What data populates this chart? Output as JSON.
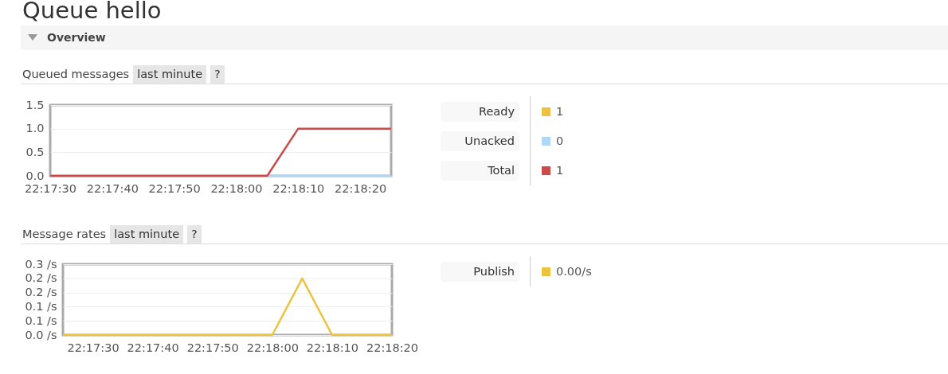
{
  "chart_data": [
    {
      "type": "other",
      "title": "Queue hello",
      "subtitle": "Overview"
    },
    {
      "type": "line",
      "title": "Queued messages",
      "annotations": [
        "last minute",
        "?",
        "1",
        "0",
        "1"
      ],
      "x": [
        22.291667,
        22.301389,
        22.302778,
        22.306944
      ],
      "series": [
        {
          "name": "Ready",
          "color": "#edc240",
          "values": [
            null,
            null,
            null,
            null
          ]
        },
        {
          "name": "Unacked",
          "color": "#afd8f8",
          "values": [
            null,
            0,
            0,
            0
          ]
        },
        {
          "name": "Total",
          "color": "#cb4b4b",
          "values": [
            0,
            0,
            1,
            1
          ]
        }
      ],
      "xlim": [
        22.291667,
        22.306944
      ],
      "xticks": [
        {
          "value": 22.291667,
          "label": "22:17:30"
        },
        {
          "value": 22.294444,
          "label": "22:17:40"
        },
        {
          "value": 22.297222,
          "label": "22:17:50"
        },
        {
          "value": 22.3,
          "label": "22:18:00"
        },
        {
          "value": 22.302778,
          "label": "22:18:10"
        },
        {
          "value": 22.305556,
          "label": "22:18:20"
        }
      ],
      "ylim": [
        0,
        1.5
      ],
      "yticks": [
        {
          "value": 0,
          "label": "0.0"
        },
        0.5,
        {
          "value": 1,
          "label": "1.0"
        },
        1.5
      ],
      "grid": "y",
      "legend": "right"
    },
    {
      "type": "line",
      "title": "Message rates",
      "annotations": [
        "last minute",
        "?",
        "0.00/s"
      ],
      "x": [
        22.290278,
        22.3,
        22.301389,
        22.302778,
        22.305556
      ],
      "series": [
        {
          "name": "Publish",
          "color": "#edc240",
          "values": [
            0,
            0,
            0.2,
            0,
            0
          ]
        }
      ],
      "xlim": [
        22.290278,
        22.305556
      ],
      "xticks": [
        {
          "value": 22.291667,
          "label": "22:17:30"
        },
        {
          "value": 22.294444,
          "label": "22:17:40"
        },
        {
          "value": 22.297222,
          "label": "22:17:50"
        },
        {
          "value": 22.3,
          "label": "22:18:00"
        },
        {
          "value": 22.302778,
          "label": "22:18:10"
        },
        {
          "value": 22.305556,
          "label": "22:18:20"
        }
      ],
      "ylim": [
        0,
        0.25
      ],
      "yticks": [
        {
          "value": 0,
          "label": "0.0 /s"
        },
        {
          "value": 0.05,
          "label": "0.1 /s"
        },
        {
          "value": 0.1,
          "label": "0.1 /s"
        },
        {
          "value": 0.15,
          "label": "0.2 /s"
        },
        {
          "value": 0.2,
          "label": "0.2 /s"
        },
        {
          "value": 0.25,
          "label": "0.3 /s"
        }
      ],
      "grid": "y",
      "legend": "right"
    }
  ]
}
